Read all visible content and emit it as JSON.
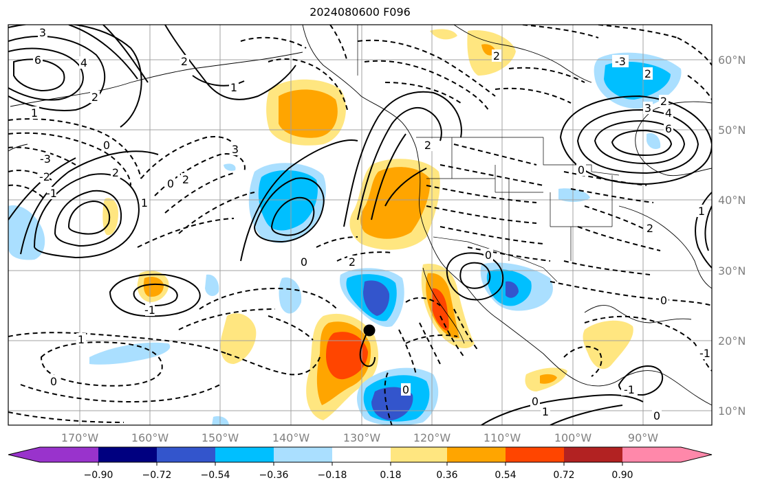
{
  "title": "2024080600 F096",
  "lon_labels": [
    "170°W",
    "160°W",
    "150°W",
    "140°W",
    "130°W",
    "120°W",
    "110°W",
    "100°W",
    "90°W"
  ],
  "lat_labels": [
    "60°N",
    "50°N",
    "40°N",
    "30°N",
    "20°N",
    "10°N"
  ],
  "colorbar": {
    "ticks": [
      "−0.90",
      "−0.72",
      "−0.54",
      "−0.36",
      "−0.18",
      "0.18",
      "0.36",
      "0.54",
      "0.72",
      "0.90"
    ],
    "colors": [
      "#9933cc",
      "#000080",
      "#3355cc",
      "#00bfff",
      "#aadfff",
      "#ffffff",
      "#ffe680",
      "#ffa500",
      "#ff4500",
      "#b22222",
      "#ff88aa"
    ]
  },
  "contour_labels": [
    "3",
    "6",
    "4",
    "2",
    "1",
    "0",
    "-1",
    "-2",
    "-3",
    "2",
    "1",
    "0",
    "-1",
    "2",
    "3",
    "2",
    "0",
    "1",
    "1",
    "0",
    "2",
    "4",
    "6",
    "-3",
    "2",
    "3",
    "0",
    "-1",
    "1",
    "2",
    "2",
    "2",
    "0",
    "2",
    "0",
    "0",
    "0",
    "-1",
    "1",
    "0"
  ],
  "marker": "storm-center-dot"
}
